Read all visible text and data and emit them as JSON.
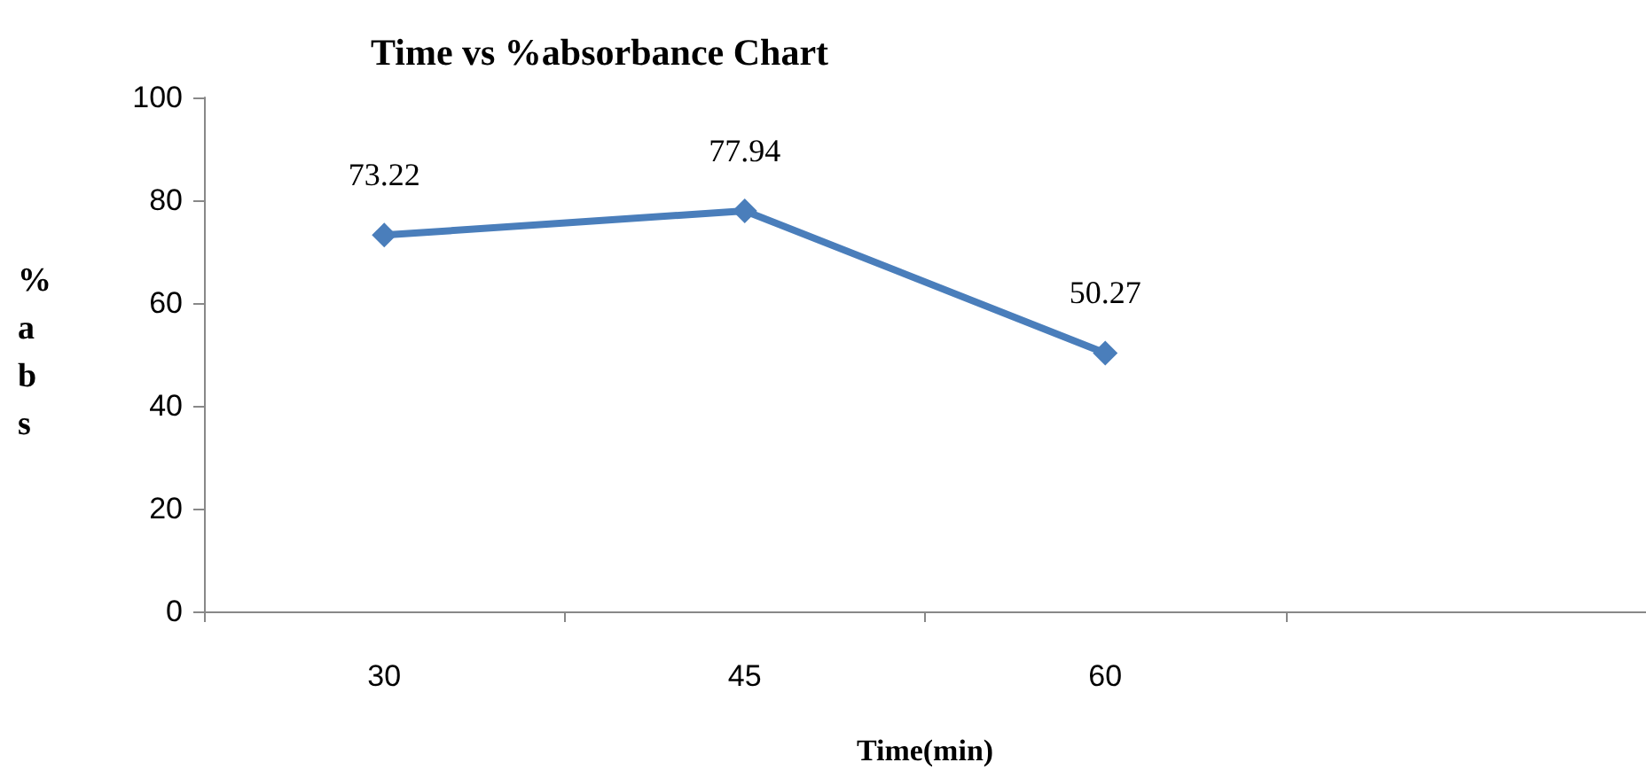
{
  "chart_data": {
    "type": "line",
    "title": "Time vs %absorbance Chart",
    "xlabel": "Time(min)",
    "ylabel": "%abs",
    "categories": [
      "30",
      "45",
      "60",
      null
    ],
    "series": [
      {
        "color": "#4a7ebb",
        "values": [
          73.22,
          77.94,
          50.27,
          null
        ]
      }
    ],
    "ylim": [
      0,
      100
    ],
    "yticks": [
      0,
      20,
      40,
      60,
      80,
      100
    ],
    "grid": false,
    "marker": "diamond",
    "line_style": "solid",
    "data_labels": true
  }
}
